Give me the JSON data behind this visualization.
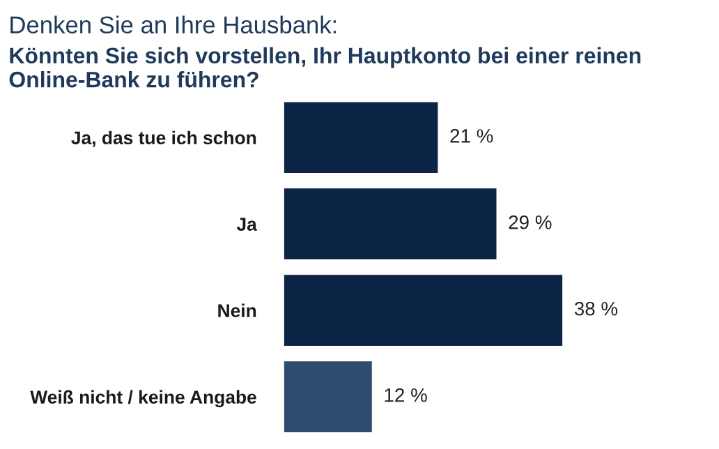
{
  "chart_data": {
    "type": "bar",
    "orientation": "horizontal",
    "title": "Denken Sie an Ihre Hausbank:",
    "subtitle": "Könnten Sie sich vorstellen, Ihr Hauptkonto bei einer reinen Online-Bank zu führen?",
    "categories": [
      "Ja, das tue ich schon",
      "Ja",
      "Nein",
      "Weiß nicht / keine Angabe"
    ],
    "values": [
      21,
      29,
      38,
      12
    ],
    "colors": [
      "#0c2446",
      "#0c2446",
      "#0c2446",
      "#2e4d6e"
    ],
    "value_labels": [
      "21 %",
      "29 %",
      "38 %",
      "12 %"
    ]
  }
}
